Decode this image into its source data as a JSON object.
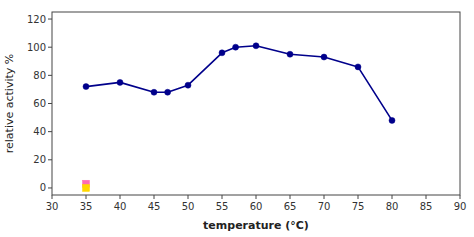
{
  "chart_data": {
    "type": "line",
    "xlabel": "temperature (°C)",
    "ylabel": "relative activity %",
    "x": [
      35,
      40,
      45,
      47,
      50,
      55,
      57,
      60,
      65,
      70,
      75,
      80
    ],
    "series": [
      {
        "values": [
          72,
          75,
          68,
          68,
          73,
          96,
          100,
          101,
          95,
          93,
          86,
          48
        ],
        "color": "#00008B",
        "marker": "circle"
      },
      {
        "type": "scatter",
        "x": [
          35
        ],
        "values": [
          3
        ],
        "color": "#FF69B4",
        "marker": "square"
      },
      {
        "type": "scatter",
        "x": [
          35
        ],
        "values": [
          0
        ],
        "color": "#FFD700",
        "marker": "square"
      }
    ],
    "xlim": [
      30,
      90
    ],
    "ylim": [
      -5,
      125
    ],
    "xticks": [
      30,
      35,
      40,
      45,
      50,
      55,
      60,
      65,
      70,
      75,
      80,
      85,
      90
    ],
    "yticks": [
      0,
      20,
      40,
      60,
      80,
      100,
      120
    ],
    "grid": false
  }
}
